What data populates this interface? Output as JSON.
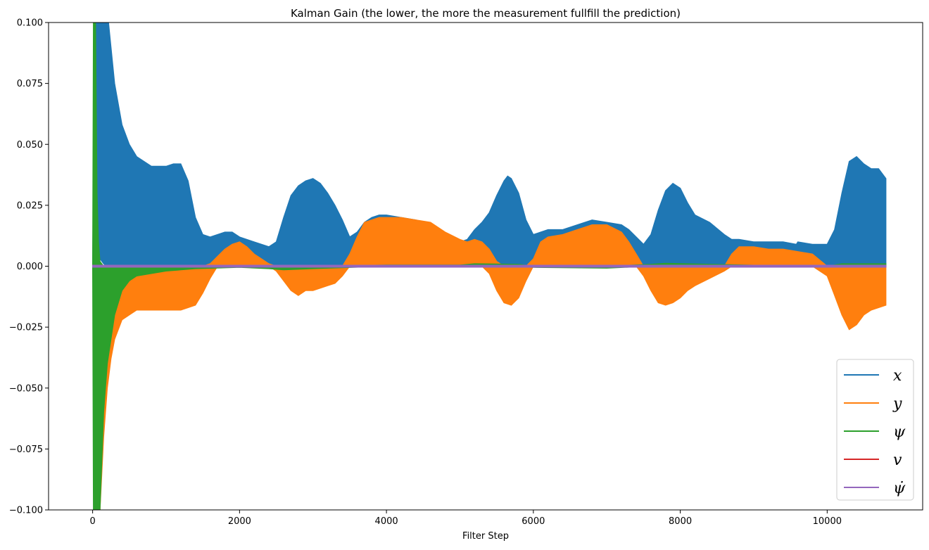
{
  "chart_data": {
    "type": "area",
    "title": "Kalman Gain (the lower, the more the measurement fullfill the prediction)",
    "xlabel": "Filter Step",
    "ylabel": "",
    "xlim": [
      -600,
      11300
    ],
    "ylim": [
      -0.1,
      0.1
    ],
    "xticks": [
      0,
      2000,
      4000,
      6000,
      8000,
      10000
    ],
    "xtick_labels": [
      "0",
      "2000",
      "4000",
      "6000",
      "8000",
      "10000"
    ],
    "yticks": [
      -0.1,
      -0.075,
      -0.05,
      -0.025,
      0.0,
      0.025,
      0.05,
      0.075,
      0.1
    ],
    "ytick_labels": [
      "−0.100",
      "−0.075",
      "−0.050",
      "−0.025",
      "0.000",
      "0.025",
      "0.050",
      "0.075",
      "0.100"
    ],
    "grid": false,
    "legend_position": "lower-right",
    "series": [
      {
        "name": "x",
        "color": "#1f77b4",
        "x": [
          0,
          50,
          100,
          150,
          200,
          250,
          300,
          400,
          500,
          600,
          800,
          1000,
          1100,
          1200,
          1300,
          1400,
          1500,
          1600,
          1800,
          1900,
          2000,
          2200,
          2400,
          2500,
          2600,
          2700,
          2800,
          2900,
          3000,
          3100,
          3200,
          3300,
          3400,
          3500,
          3600,
          3700,
          3800,
          3900,
          4000,
          4200,
          4400,
          4600,
          4800,
          5000,
          5100,
          5200,
          5300,
          5400,
          5500,
          5600,
          5650,
          5700,
          5800,
          5900,
          6000,
          6100,
          6200,
          6400,
          6600,
          6800,
          7000,
          7200,
          7300,
          7400,
          7500,
          7600,
          7700,
          7800,
          7900,
          8000,
          8100,
          8200,
          8400,
          8600,
          8700,
          8800,
          9000,
          9200,
          9400,
          9580,
          9600,
          9800,
          10000,
          10100,
          10200,
          10300,
          10400,
          10500,
          10600,
          10700,
          10800
        ],
        "upper": [
          0.0,
          0.15,
          0.12,
          0.11,
          0.105,
          0.09,
          0.075,
          0.058,
          0.05,
          0.045,
          0.041,
          0.041,
          0.042,
          0.042,
          0.035,
          0.02,
          0.013,
          0.012,
          0.014,
          0.014,
          0.012,
          0.01,
          0.008,
          0.01,
          0.02,
          0.029,
          0.033,
          0.035,
          0.036,
          0.034,
          0.03,
          0.025,
          0.019,
          0.012,
          0.014,
          0.018,
          0.02,
          0.021,
          0.021,
          0.02,
          0.019,
          0.017,
          0.013,
          0.01,
          0.011,
          0.015,
          0.018,
          0.022,
          0.029,
          0.035,
          0.037,
          0.036,
          0.03,
          0.019,
          0.013,
          0.014,
          0.015,
          0.015,
          0.017,
          0.019,
          0.018,
          0.017,
          0.015,
          0.012,
          0.009,
          0.013,
          0.023,
          0.031,
          0.034,
          0.032,
          0.026,
          0.021,
          0.018,
          0.013,
          0.011,
          0.011,
          0.01,
          0.01,
          0.01,
          0.009,
          0.01,
          0.009,
          0.009,
          0.015,
          0.03,
          0.043,
          0.045,
          0.042,
          0.04,
          0.04,
          0.036
        ],
        "lower": [
          0.0,
          0.01,
          0.003,
          0.001,
          0.0,
          0.0,
          0.0,
          0.0,
          0.0,
          0.0,
          0.0,
          0.0,
          0.0,
          0.0,
          0.0,
          0.0,
          0.0,
          0.0,
          0.0,
          0.0,
          0.0,
          0.0,
          0.0,
          0.0,
          0.0,
          0.0,
          0.0,
          0.0,
          0.0,
          0.0,
          0.0,
          0.0,
          0.0,
          0.0,
          0.0,
          0.0,
          0.0,
          0.0,
          0.0,
          0.0,
          0.0,
          0.0,
          0.0,
          0.0,
          0.0,
          0.0,
          0.0,
          0.0,
          0.0,
          0.0,
          0.0,
          0.0,
          0.0,
          0.0,
          0.0,
          0.0,
          0.0,
          0.0,
          0.0,
          0.0,
          0.0,
          0.0,
          0.0,
          0.0,
          0.0,
          0.0,
          0.0,
          0.0,
          0.0,
          0.0,
          0.0,
          0.0,
          0.0,
          0.0,
          0.0,
          0.0,
          0.0,
          0.0,
          0.0,
          0.0,
          0.0,
          0.0,
          0.0,
          0.0,
          0.0,
          0.0,
          0.0,
          0.0,
          0.0,
          0.0,
          0.0
        ]
      },
      {
        "name": "y",
        "color": "#ff7f0e",
        "x": [
          0,
          80,
          100,
          150,
          200,
          250,
          300,
          400,
          500,
          600,
          800,
          1000,
          1100,
          1200,
          1300,
          1400,
          1500,
          1600,
          1700,
          1800,
          1900,
          2000,
          2100,
          2200,
          2300,
          2400,
          2500,
          2600,
          2700,
          2800,
          2900,
          3000,
          3100,
          3200,
          3300,
          3400,
          3500,
          3600,
          3700,
          3800,
          3900,
          4000,
          4200,
          4400,
          4600,
          4800,
          5000,
          5100,
          5200,
          5300,
          5400,
          5500,
          5600,
          5700,
          5800,
          5900,
          6000,
          6100,
          6200,
          6400,
          6600,
          6800,
          7000,
          7200,
          7300,
          7400,
          7500,
          7600,
          7700,
          7800,
          7900,
          8000,
          8100,
          8200,
          8400,
          8600,
          8700,
          8800,
          9000,
          9200,
          9400,
          9600,
          9800,
          10000,
          10100,
          10200,
          10300,
          10400,
          10500,
          10600,
          10700,
          10800
        ],
        "upper": [
          0.0,
          0.0,
          0.0,
          0.0,
          0.0,
          0.0,
          0.0,
          0.0,
          0.0,
          0.0,
          0.0,
          0.0,
          0.0,
          0.0,
          0.0,
          0.0,
          0.0,
          0.001,
          0.004,
          0.007,
          0.009,
          0.01,
          0.008,
          0.005,
          0.003,
          0.001,
          0.0,
          0.0,
          0.0,
          0.0,
          0.0,
          0.0,
          0.0,
          0.0,
          0.0,
          0.0,
          0.005,
          0.012,
          0.018,
          0.019,
          0.02,
          0.02,
          0.02,
          0.019,
          0.018,
          0.014,
          0.011,
          0.01,
          0.011,
          0.01,
          0.007,
          0.002,
          0.0,
          0.0,
          0.0,
          0.0,
          0.003,
          0.01,
          0.012,
          0.013,
          0.015,
          0.017,
          0.017,
          0.014,
          0.01,
          0.005,
          0.0,
          0.0,
          0.0,
          0.0,
          0.0,
          0.0,
          0.0,
          0.0,
          0.0,
          0.0,
          0.005,
          0.008,
          0.008,
          0.007,
          0.007,
          0.006,
          0.005,
          0.0,
          0.0,
          0.0,
          0.0,
          0.0,
          0.0,
          0.0,
          0.0,
          0.0
        ],
        "lower": [
          0.0,
          -0.1,
          -0.1,
          -0.07,
          -0.05,
          -0.038,
          -0.03,
          -0.022,
          -0.02,
          -0.018,
          -0.018,
          -0.018,
          -0.018,
          -0.018,
          -0.017,
          -0.016,
          -0.011,
          -0.005,
          0.0,
          0.0,
          0.0,
          0.0,
          0.0,
          0.0,
          0.0,
          0.0,
          -0.002,
          -0.006,
          -0.01,
          -0.012,
          -0.01,
          -0.01,
          -0.009,
          -0.008,
          -0.007,
          -0.004,
          0.0,
          0.0,
          0.0,
          0.0,
          0.0,
          0.0,
          0.0,
          0.0,
          0.0,
          0.0,
          0.0,
          0.0,
          0.0,
          0.0,
          -0.003,
          -0.01,
          -0.015,
          -0.016,
          -0.013,
          -0.006,
          0.0,
          0.0,
          0.0,
          0.0,
          0.0,
          0.0,
          0.0,
          0.0,
          0.0,
          0.0,
          -0.004,
          -0.01,
          -0.015,
          -0.016,
          -0.015,
          -0.013,
          -0.01,
          -0.008,
          -0.005,
          -0.002,
          0.0,
          0.0,
          0.0,
          0.0,
          0.0,
          0.0,
          0.0,
          -0.004,
          -0.012,
          -0.02,
          -0.026,
          -0.024,
          -0.02,
          -0.018,
          -0.017,
          -0.016
        ]
      },
      {
        "name": "ψ",
        "color": "#2ca02c",
        "x": [
          0,
          10,
          20,
          40,
          60,
          80,
          100,
          150,
          200,
          300,
          400,
          500,
          600,
          800,
          1000,
          1400,
          2000,
          2400,
          2600,
          3000,
          4000,
          5000,
          5200,
          5800,
          6000,
          7000,
          7600,
          7800,
          8400,
          9000,
          10000,
          10200,
          10800
        ],
        "upper": [
          0.0,
          0.1,
          0.1,
          0.1,
          0.03,
          0.01,
          0.002,
          0.0,
          0.0,
          0.0,
          0.0,
          0.0,
          0.0,
          0.0,
          0.0,
          0.0,
          0.0,
          0.0,
          0.0,
          0.0,
          0.0005,
          0.0005,
          0.001,
          0.0008,
          0.0,
          0.0,
          0.0008,
          0.0012,
          0.0008,
          0.0004,
          0.0,
          0.001,
          0.001
        ],
        "lower": [
          0.0,
          -0.1,
          -0.1,
          -0.1,
          -0.1,
          -0.1,
          -0.1,
          -0.06,
          -0.04,
          -0.02,
          -0.01,
          -0.006,
          -0.004,
          -0.003,
          -0.002,
          -0.001,
          -0.0005,
          -0.001,
          -0.0015,
          -0.001,
          0.0,
          0.0,
          0.0,
          0.0,
          -0.0005,
          -0.0008,
          0.0,
          0.0,
          0.0,
          -0.0003,
          -0.0004,
          0.0,
          0.0
        ]
      },
      {
        "name": "v",
        "color": "#d62728",
        "x": [
          0,
          10800
        ],
        "upper": [
          0.0003,
          0.0003
        ],
        "lower": [
          -0.0003,
          -0.0003
        ]
      },
      {
        "name": "ψ̇",
        "color": "#9467bd",
        "x": [
          0,
          10800
        ],
        "upper": [
          0.0004,
          0.0004
        ],
        "lower": [
          -0.0004,
          -0.0004
        ]
      }
    ]
  }
}
